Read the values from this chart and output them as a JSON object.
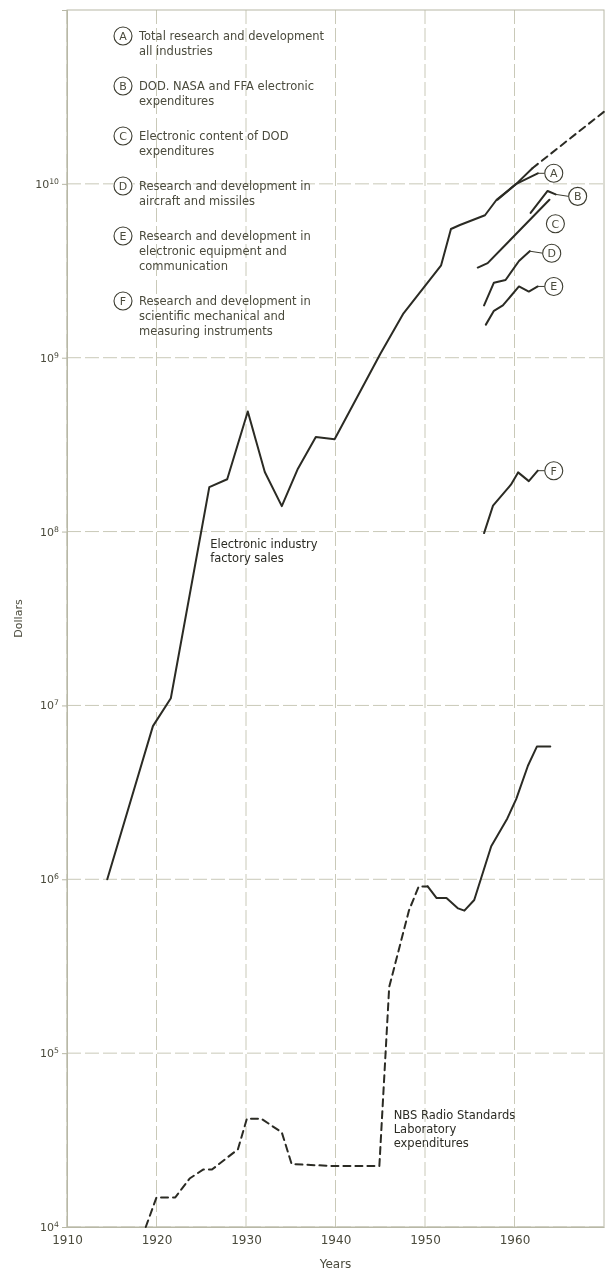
{
  "chart_data": {
    "type": "line",
    "xlabel": "Years",
    "ylabel": "Dollars",
    "log": "y",
    "grid": true,
    "xlim": [
      1910,
      1970
    ],
    "xticks": [
      1910,
      1920,
      1930,
      1940,
      1950,
      1960
    ],
    "ylim": [
      10000,
      100000000000
    ],
    "yticks": [
      {
        "value": 10000,
        "label": "10$^{4}$"
      },
      {
        "value": 100000,
        "label": "10$^{5}$"
      },
      {
        "value": 1000000,
        "label": "10$^{6}$"
      },
      {
        "value": 10000000,
        "label": "10$^{7}$"
      },
      {
        "value": 100000000,
        "label": "10$^{8}$"
      },
      {
        "value": 1000000000,
        "label": "10$^{9}$"
      },
      {
        "value": 10000000000,
        "label": "10$^{10}$"
      }
    ],
    "series": [
      {
        "name": "Electronic industry factory sales",
        "color": "#2b2b24",
        "line_style": "solid",
        "x": [
          1914.5,
          1919.6,
          1921.6,
          1925.9,
          1927.9,
          1930.2,
          1932.1,
          1934,
          1935.8,
          1937.8,
          1939.9,
          1945,
          1947.6,
          1951.8,
          1952.9,
          1953.9,
          1956.7,
          1958,
          1960.2,
          1962
        ],
        "values": [
          1000000,
          7600000,
          11000000,
          180000000,
          200000000,
          490000000,
          220000000,
          140000000,
          230000000,
          350000000,
          340000000,
          1050000000,
          1800000000,
          3400000000,
          5500000000,
          5800000000,
          6600000000,
          8100000000,
          10000000000,
          12300000000
        ]
      },
      {
        "color": "#2b2b24",
        "line_style": "dashed",
        "x": [
          1962,
          1970
        ],
        "values": [
          12300000000,
          26000000000
        ]
      },
      {
        "color": "#2b2b24",
        "line_style": "solid",
        "x": [
          1958.1,
          1960.2,
          1962.6
        ],
        "values": [
          8100000000,
          10000000000,
          11500000000
        ]
      },
      {
        "color": "#2b2b24",
        "line_style": "solid",
        "x": [
          1961.8,
          1963.7,
          1964.6
        ],
        "values": [
          6800000000,
          9100000000,
          8700000000
        ]
      },
      {
        "color": "#2b2b24",
        "line_style": "solid",
        "x": [
          1955.9,
          1957,
          1963.9
        ],
        "values": [
          3300000000,
          3500000000,
          8100000000
        ]
      },
      {
        "color": "#2b2b24",
        "line_style": "solid",
        "x": [
          1956.6,
          1957.7,
          1959,
          1960.5,
          1961.7
        ],
        "values": [
          2000000000,
          2700000000,
          2800000000,
          3600000000,
          4100000000
        ]
      },
      {
        "color": "#2b2b24",
        "line_style": "solid",
        "x": [
          1956.8,
          1957.7,
          1958.7,
          1960.5,
          1961.6,
          1962.6
        ],
        "values": [
          1550000000,
          1860000000,
          2000000000,
          2570000000,
          2400000000,
          2570000000
        ]
      },
      {
        "color": "#2b2b24",
        "line_style": "solid",
        "x": [
          1956.6,
          1957.6,
          1959.6,
          1960.4,
          1961.6,
          1962.6
        ],
        "values": [
          98000000,
          141000000,
          186000000,
          219000000,
          195000000,
          224000000
        ]
      },
      {
        "name": "NBS Radio Standards Laboratory expenditures",
        "color": "#2b2b24",
        "line_style": "dashed",
        "x": [
          1918.8,
          1920,
          1922.1,
          1923.7,
          1925.2,
          1926.2,
          1929.1,
          1930.1,
          1931.7,
          1934,
          1935.1,
          1940.1,
          1944.9,
          1946,
          1947,
          1948.2,
          1949.3,
          1950.3
        ],
        "values": [
          10000,
          14800,
          14800,
          19000,
          21400,
          21400,
          28000,
          42000,
          42000,
          35000,
          23000,
          22400,
          22400,
          240000,
          380000,
          660000,
          910000,
          910000
        ]
      },
      {
        "color": "#2b2b24",
        "line_style": "solid",
        "x": [
          1950.3,
          1951.3,
          1952.4,
          1953.7,
          1954.4,
          1955.5,
          1957.4,
          1959.2,
          1960.2,
          1961.5,
          1962.5,
          1964
        ],
        "values": [
          910000,
          780000,
          780000,
          680000,
          660000,
          760000,
          1550000,
          2240000,
          2900000,
          4500000,
          5800000,
          5800000
        ]
      }
    ],
    "annotations": [
      "Total research and development all industries",
      "DOD. NASA and FFA electronic expenditures",
      "Electronic content of DOD expenditures",
      "Research and development in aircraft and missiles",
      "Research and development in electronic equipment and communication",
      "Research and development in scientific mechanical and measuring instruments",
      {
        "text": "A",
        "x": 1962.6,
        "y": 11500000000
      },
      {
        "text": "B",
        "x": 1964.6,
        "y": 8700000000
      },
      {
        "text": "C",
        "x": 1963.9,
        "y": 8100000000
      },
      {
        "text": "D",
        "x": 1961.7,
        "y": 4100000000
      },
      {
        "text": "E",
        "x": 1962.6,
        "y": 2570000000
      },
      {
        "text": "F",
        "x": 1962.6,
        "y": 224000000
      }
    ]
  }
}
